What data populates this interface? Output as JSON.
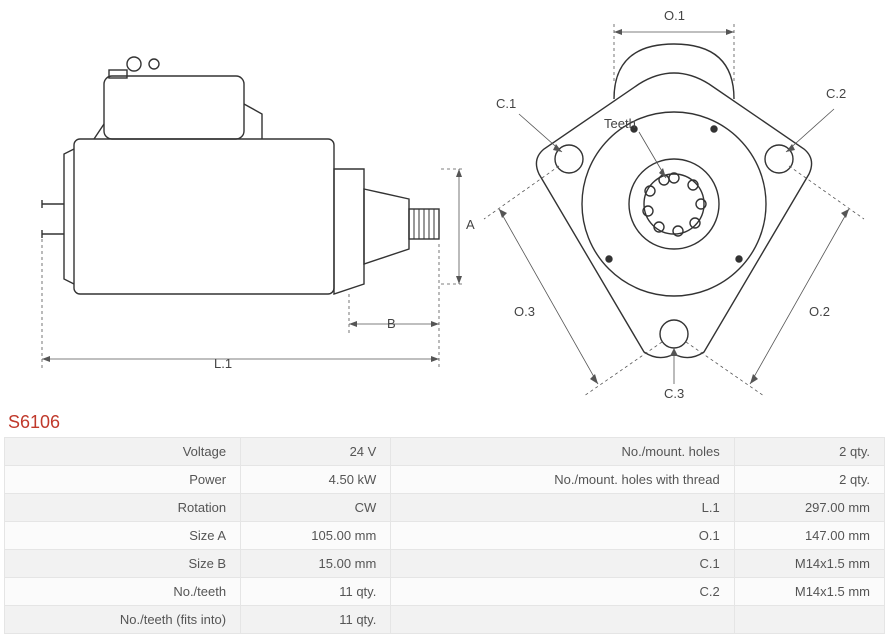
{
  "part_code": "S6106",
  "side_view": {
    "labels": {
      "A": "A",
      "B": "B",
      "L1": "L.1"
    },
    "stroke": "#333333",
    "dim_stroke": "#555555",
    "fontsize": 13
  },
  "front_view": {
    "labels": {
      "O1": "O.1",
      "O2": "O.2",
      "O3": "O.3",
      "C1": "C.1",
      "C2": "C.2",
      "C3": "C.3",
      "Teeth": "Teeth"
    },
    "stroke": "#333333",
    "dim_stroke": "#555555",
    "fontsize": 13
  },
  "specs_left": [
    {
      "k": "Voltage",
      "v": "24 V"
    },
    {
      "k": "Power",
      "v": "4.50 kW"
    },
    {
      "k": "Rotation",
      "v": "CW"
    },
    {
      "k": "Size A",
      "v": "105.00 mm"
    },
    {
      "k": "Size B",
      "v": "15.00 mm"
    },
    {
      "k": "No./teeth",
      "v": "11 qty."
    },
    {
      "k": "No./teeth (fits into)",
      "v": "11 qty."
    }
  ],
  "specs_right": [
    {
      "k": "No./mount. holes",
      "v": "2 qty."
    },
    {
      "k": "No./mount. holes with thread",
      "v": "2 qty."
    },
    {
      "k": "L.1",
      "v": "297.00 mm"
    },
    {
      "k": "O.1",
      "v": "147.00 mm"
    },
    {
      "k": "C.1",
      "v": "M14x1.5 mm"
    },
    {
      "k": "C.2",
      "v": "M14x1.5 mm"
    }
  ],
  "colors": {
    "border": "#e5e5e5",
    "row_odd": "#f2f2f2",
    "row_even": "#fbfbfb",
    "code": "#c0392b"
  }
}
